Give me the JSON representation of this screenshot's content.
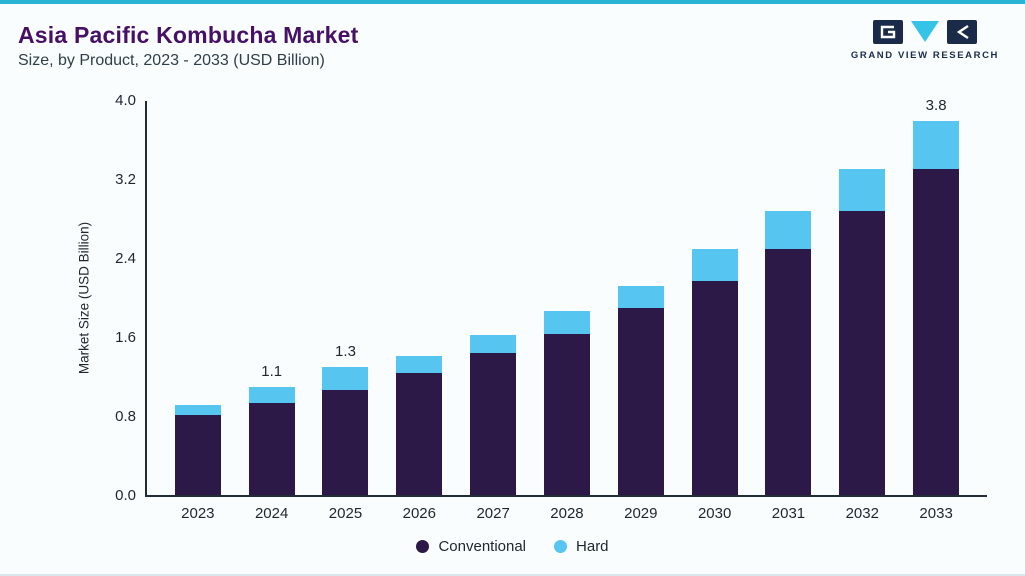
{
  "header": {
    "title": "Asia Pacific Kombucha Market",
    "subtitle": "Size, by Product, 2023 - 2033 (USD Billion)",
    "logo_text": "GRAND VIEW RESEARCH"
  },
  "colors": {
    "accent_teal": "#2bb3d4",
    "title_purple": "#451065",
    "conventional_purple": "#2c1947",
    "hard_cyan": "#56c5f0",
    "logo_navy": "#1a2b49",
    "logo_cyan": "#35c4e8",
    "axis_text": "#1d262e"
  },
  "chart_data": {
    "type": "bar",
    "stacked": true,
    "title": "Asia Pacific Kombucha Market Size, by Product, 2023 - 2033 (USD Billion)",
    "xlabel": "",
    "ylabel": "Market Size (USD Billion)",
    "ylim": [
      0,
      4.0
    ],
    "yticks": [
      "4.0",
      "3.2",
      "2.4",
      "1.6",
      "0.8",
      "0.0"
    ],
    "grid": false,
    "legend_position": "bottom",
    "categories": [
      "2023",
      "2024",
      "2025",
      "2026",
      "2027",
      "2028",
      "2029",
      "2030",
      "2031",
      "2032",
      "2033"
    ],
    "series": [
      {
        "name": "Conventional",
        "color": "#2c1947",
        "values": [
          0.81,
          0.93,
          1.07,
          1.24,
          1.44,
          1.63,
          1.9,
          2.17,
          2.5,
          2.88,
          3.31
        ]
      },
      {
        "name": "Hard",
        "color": "#56c5f0",
        "values": [
          0.1,
          0.17,
          0.23,
          0.17,
          0.18,
          0.24,
          0.22,
          0.33,
          0.38,
          0.43,
          0.49
        ]
      }
    ],
    "totals_shown": {
      "2024": "1.1",
      "2025": "1.3",
      "2033": "3.8"
    }
  }
}
